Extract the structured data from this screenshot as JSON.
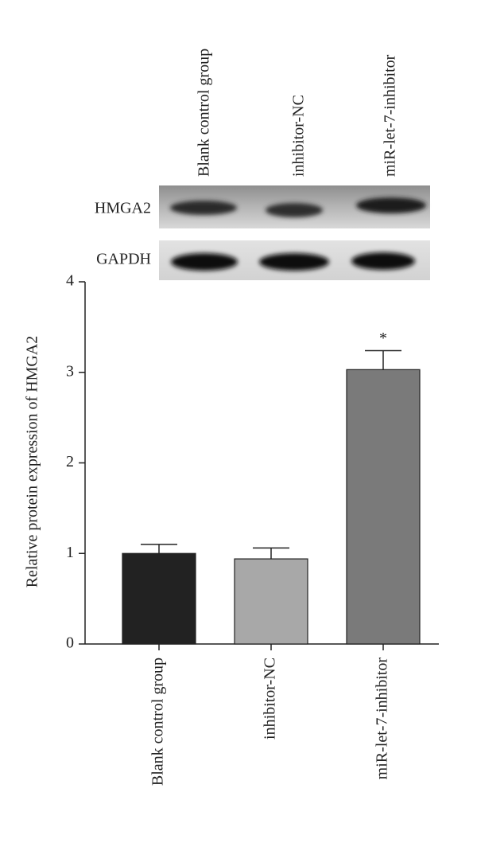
{
  "chart_data": {
    "type": "bar",
    "y_label": "Relative protein expression of HMGA2",
    "categories": [
      "Blank control group",
      "inhibitor-NC",
      "miR-let-7-inhibitor"
    ],
    "values": [
      1.0,
      0.94,
      3.03
    ],
    "errors": [
      0.1,
      0.12,
      0.21
    ],
    "significance": [
      null,
      null,
      "*"
    ],
    "colors": [
      "#222222",
      "#a8a8a8",
      "#7a7a7a"
    ],
    "ylim": [
      0,
      4
    ],
    "yticks": [
      0,
      1,
      2,
      3,
      4
    ]
  },
  "blot": {
    "rows": [
      "HMGA2",
      "GAPDH"
    ]
  }
}
